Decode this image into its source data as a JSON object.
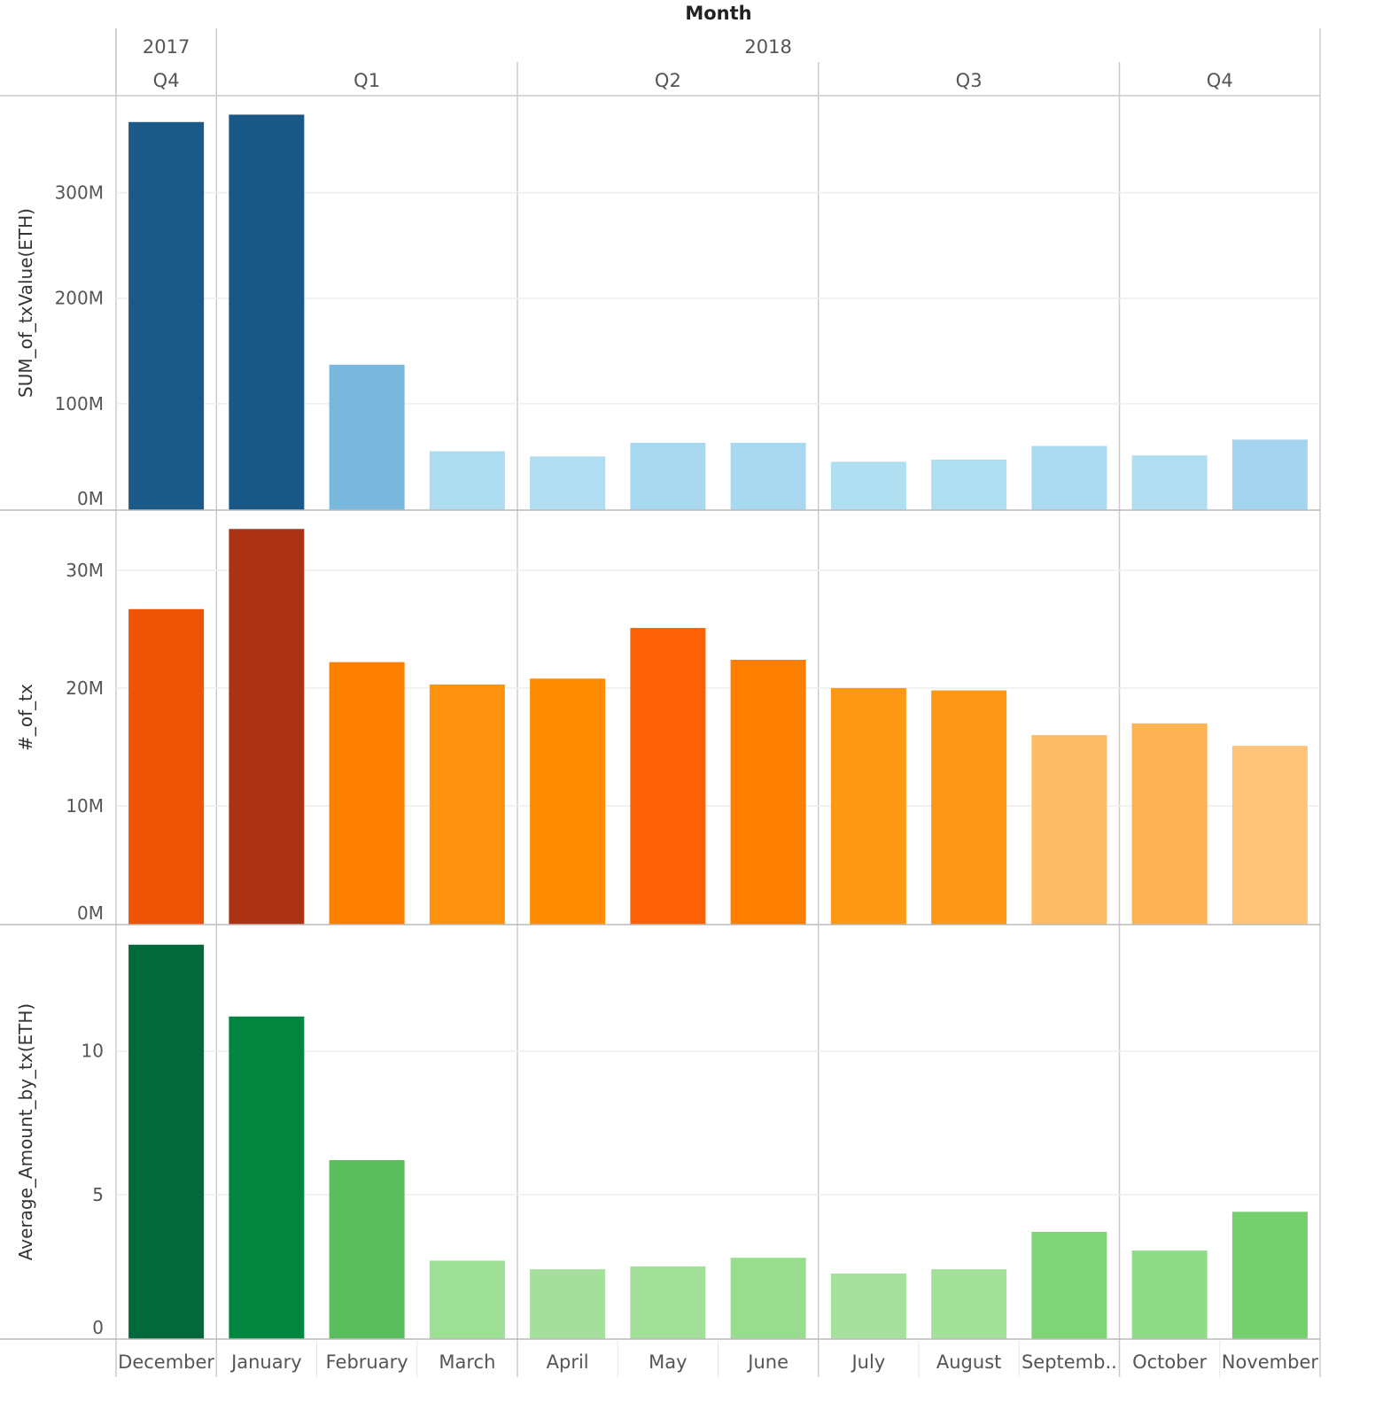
{
  "chart_data": {
    "type": "bar",
    "title": "Month",
    "years": [
      {
        "label": "2017",
        "months": 1
      },
      {
        "label": "2018",
        "months": 11
      }
    ],
    "quarters": [
      {
        "label": "Q4",
        "months": 1
      },
      {
        "label": "Q1",
        "months": 3
      },
      {
        "label": "Q2",
        "months": 3
      },
      {
        "label": "Q3",
        "months": 3
      },
      {
        "label": "Q4",
        "months": 2
      }
    ],
    "categories": [
      "December",
      "January",
      "February",
      "March",
      "April",
      "May",
      "June",
      "July",
      "August",
      "Septemb..",
      "October",
      "November"
    ],
    "panels": [
      {
        "name": "SUM_of_txValue(ETH)",
        "ylabel": "SUM_of_txValue(ETH)",
        "unit": "M",
        "ylim": [
          0,
          392
        ],
        "ticks": [
          {
            "v": 0,
            "label": "0M"
          },
          {
            "v": 100,
            "label": "100M"
          },
          {
            "v": 200,
            "label": "200M"
          },
          {
            "v": 300,
            "label": "300M"
          }
        ],
        "values": [
          367,
          374,
          137,
          55,
          50,
          63,
          63,
          45,
          47,
          60,
          51,
          66
        ],
        "colors": [
          "#1b5a88",
          "#185786",
          "#7ab7dd",
          "#addcf0",
          "#b0ddf1",
          "#a8d8ef",
          "#a8d8ef",
          "#b0dff2",
          "#afdef1",
          "#aad9f0",
          "#b0ddf1",
          "#a4d4ee"
        ]
      },
      {
        "name": "#_of_tx",
        "ylabel": "#_of_tx",
        "unit": "M",
        "ylim": [
          0,
          35.1
        ],
        "ticks": [
          {
            "v": 0,
            "label": "0M"
          },
          {
            "v": 10,
            "label": "10M"
          },
          {
            "v": 20,
            "label": "20M"
          },
          {
            "v": 30,
            "label": "30M"
          }
        ],
        "values": [
          26.7,
          33.5,
          22.2,
          20.3,
          20.8,
          25.1,
          22.4,
          20.0,
          19.8,
          16.0,
          17.0,
          15.1
        ],
        "colors": [
          "#ee5404",
          "#ab3214",
          "#fd7f00",
          "#fe920e",
          "#fe8b00",
          "#fc6205",
          "#fe7f00",
          "#fe9915",
          "#fd9716",
          "#febb66",
          "#fdb355",
          "#fec278"
        ]
      },
      {
        "name": "Average_Amount_by_tx(ETH)",
        "ylabel": "Average_Amount_by_tx(ETH)",
        "unit": "",
        "ylim": [
          0,
          14.4
        ],
        "ticks": [
          {
            "v": 0,
            "label": "0"
          },
          {
            "v": 5,
            "label": "5"
          },
          {
            "v": 10,
            "label": "10"
          }
        ],
        "values": [
          13.7,
          11.2,
          6.2,
          2.7,
          2.4,
          2.5,
          2.8,
          2.25,
          2.4,
          3.7,
          3.05,
          4.4
        ],
        "colors": [
          "#03693a",
          "#01853f",
          "#5abe5e",
          "#9cdf95",
          "#a4e09b",
          "#a2df98",
          "#98dd8f",
          "#a6e19d",
          "#a3e09a",
          "#80d478",
          "#90db88",
          "#74cf6c"
        ]
      }
    ],
    "grid": true,
    "legend": "none"
  }
}
